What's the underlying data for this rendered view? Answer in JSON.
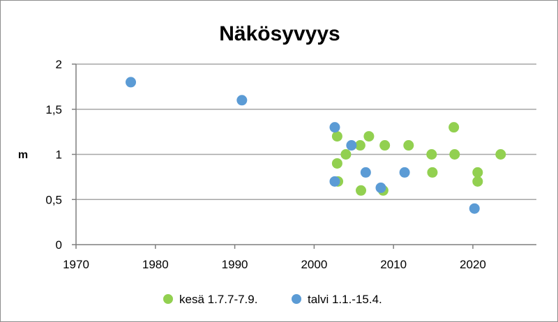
{
  "chart_data": {
    "type": "scatter",
    "title": "Näkösyvyys",
    "xlabel": "",
    "ylabel": "m",
    "xlim": [
      1970,
      2028
    ],
    "ylim": [
      0,
      2
    ],
    "x_ticks": [
      1970,
      1980,
      1990,
      2000,
      2010,
      2020
    ],
    "x_tick_labels": [
      "1970",
      "1980",
      "1990",
      "2000",
      "2010",
      "2020"
    ],
    "y_ticks": [
      0,
      0.5,
      1,
      1.5,
      2
    ],
    "y_tick_labels": [
      "0",
      "0,5",
      "1",
      "1,5",
      "2"
    ],
    "grid": "horizontal",
    "legend_position": "bottom",
    "series": [
      {
        "name": "kesä 1.7.7-7.9.",
        "color": "#92d050",
        "x": [
          2002.9,
          2002.9,
          2003.0,
          2004.0,
          2005.8,
          2005.9,
          2006.9,
          2008.7,
          2008.9,
          2011.9,
          2014.8,
          2014.9,
          2017.6,
          2017.7,
          2020.6,
          2020.6,
          2023.5
        ],
        "y": [
          1.2,
          0.9,
          0.7,
          1.0,
          1.1,
          0.6,
          1.2,
          0.6,
          1.1,
          1.1,
          1.0,
          0.8,
          1.3,
          1.0,
          0.8,
          0.7,
          1.0
        ]
      },
      {
        "name": "talvi 1.1.-15.4.",
        "color": "#5b9bd5",
        "x": [
          1976.9,
          1990.9,
          2002.6,
          2002.6,
          2004.7,
          2006.5,
          2008.4,
          2011.4,
          2020.2
        ],
        "y": [
          1.8,
          1.6,
          1.3,
          0.7,
          1.1,
          0.8,
          0.63,
          0.8,
          0.4
        ]
      }
    ]
  }
}
